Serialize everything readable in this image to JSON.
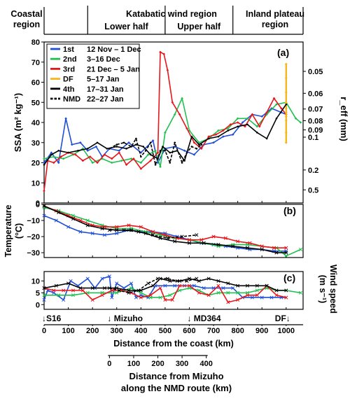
{
  "chart_data": {
    "type": "line",
    "x_axis": {
      "label": "Distance from the coast (km)",
      "range": [
        0,
        1070
      ],
      "ticks": [
        0,
        100,
        200,
        300,
        400,
        500,
        600,
        700,
        800,
        900,
        1000
      ]
    },
    "regions": {
      "coastal": "Coastal\nregion",
      "katabatic": "Katabatic wind region",
      "lower": "Lower half",
      "upper": "Upper half",
      "inland": "Inland plateau\nregion",
      "bounds_km": [
        0,
        180,
        500,
        780,
        1070
      ]
    },
    "sites": [
      {
        "label": "↓S16",
        "x": 0
      },
      {
        "label": "↓ Mizuho",
        "x": 270
      },
      {
        "label": "↓ MD364",
        "x": 600
      },
      {
        "label": "DF↓",
        "x": 1000
      }
    ],
    "colors": {
      "1st": "#1f4fd6",
      "2nd": "#20c050",
      "3rd": "#e8151b",
      "DF": "#f4b81c",
      "4th": "#000000",
      "NMD": "#000000"
    },
    "legend": [
      {
        "key": "1st",
        "name": "1st",
        "period": "12 Nov – 1 Dec",
        "style": "solid"
      },
      {
        "key": "2nd",
        "name": "2nd",
        "period": "3–16 Dec",
        "style": "solid"
      },
      {
        "key": "3rd",
        "name": "3rd",
        "period": "21 Dec – 5 Jan",
        "style": "solid"
      },
      {
        "key": "DF",
        "name": "DF",
        "period": "5–17 Jan",
        "style": "solid"
      },
      {
        "key": "4th",
        "name": "4th",
        "period": "17–31 Jan",
        "style": "solid"
      },
      {
        "key": "NMD",
        "name": "NMD",
        "period": "22–27 Jan",
        "style": "dashed"
      }
    ],
    "panels": [
      {
        "id": "a",
        "tag": "(a)",
        "ylabel": "SSA (m² kg⁻¹)",
        "ylim": [
          0,
          80
        ],
        "yticks": [
          0,
          10,
          20,
          30,
          40,
          50,
          60,
          70,
          80
        ],
        "right_label": "r_eff (mm)",
        "right_ticks": [
          {
            "label": "0.05",
            "ssa": 65.4
          },
          {
            "label": "0.06",
            "ssa": 54.5
          },
          {
            "label": "0.07",
            "ssa": 46.7
          },
          {
            "label": "0.08",
            "ssa": 40.9
          },
          {
            "label": "0.09",
            "ssa": 36.3
          },
          {
            "label": "0.1",
            "ssa": 32.7
          },
          {
            "label": "0.2",
            "ssa": 16.4
          },
          {
            "label": "0.5",
            "ssa": 6.5
          }
        ],
        "series": [
          {
            "key": "1st",
            "x": [
              0,
              30,
              60,
              90,
              115,
              150,
              180,
              215,
              240,
              270,
              310,
              350,
              400,
              450,
              470,
              500,
              540,
              580,
              620,
              660,
              700,
              740,
              780,
              820,
              860,
              900,
              940,
              980,
              1000
            ],
            "y": [
              20,
              25,
              20,
              42,
              29,
              30,
              26,
              28,
              23,
              27,
              26,
              30,
              25,
              31,
              20,
              27,
              28,
              26,
              24,
              29,
              30,
              33,
              34,
              40,
              44,
              43,
              47,
              45,
              44
            ]
          },
          {
            "key": "2nd",
            "x": [
              0,
              40,
              80,
              120,
              160,
              200,
              240,
              280,
              320,
              360,
              400,
              430,
              460,
              480,
              500,
              540,
              570,
              600,
              640,
              680,
              720,
              760,
              800,
              840,
              880,
              920,
              960,
              1000,
              1040,
              1060
            ],
            "y": [
              22,
              23,
              22,
              24,
              27,
              20,
              22,
              20,
              21,
              22,
              20,
              24,
              26,
              18,
              35,
              44,
              52,
              36,
              30,
              32,
              36,
              37,
              42,
              42,
              38,
              44,
              49,
              50,
              42,
              40
            ]
          },
          {
            "key": "3rd",
            "x": [
              0,
              15,
              40,
              70,
              100,
              130,
              160,
              190,
              220,
              250,
              280,
              310,
              340,
              370,
              400,
              440,
              470,
              480,
              495,
              510,
              530,
              560,
              590,
              620,
              650,
              680,
              710,
              740,
              770,
              800,
              830,
              860,
              890,
              920,
              950,
              980,
              1000
            ],
            "y": [
              6,
              21,
              20,
              23,
              25,
              24,
              21,
              23,
              20,
              24,
              22,
              25,
              19,
              22,
              17,
              21,
              25,
              75,
              74,
              66,
              50,
              44,
              37,
              30,
              27,
              33,
              34,
              36,
              39,
              40,
              38,
              44,
              38,
              45,
              52,
              47,
              44
            ]
          },
          {
            "key": "DF",
            "x": [
              1000,
              1000,
              1000,
              1000,
              1000,
              1000,
              1000,
              1000,
              1000,
              1000
            ],
            "y": [
              69,
              62,
              55,
              50,
              47,
              45,
              43,
              41,
              35,
              30
            ]
          },
          {
            "key": "4th",
            "x": [
              0,
              30,
              60,
              100,
              140,
              180,
              220,
              260,
              300,
              340,
              380,
              410,
              440,
              470,
              490,
              520,
              550,
              580,
              610,
              640,
              680,
              720,
              760,
              800,
              840,
              880,
              920,
              960,
              1000
            ],
            "y": [
              19,
              24,
              26,
              25,
              26,
              27,
              30,
              27,
              28,
              27,
              29,
              28,
              24,
              22,
              28,
              25,
              26,
              21,
              33,
              29,
              32,
              33,
              36,
              38,
              39,
              35,
              32,
              42,
              49
            ]
          },
          {
            "key": "NMD",
            "x": [
              270,
              300,
              330,
              360,
              380,
              400,
              420,
              440,
              460,
              480,
              500,
              520,
              540,
              570,
              590,
              610,
              630,
              650
            ],
            "y": [
              27,
              29,
              30,
              28,
              32,
              23,
              26,
              30,
              19,
              26,
              26,
              20,
              30,
              20,
              25,
              28,
              27,
              29
            ]
          }
        ]
      },
      {
        "id": "b",
        "tag": "(b)",
        "ylabel": "Temperature (°C)",
        "ylim": [
          -33,
          0
        ],
        "yticks": [
          0,
          -10,
          -20,
          -30
        ],
        "series": [
          {
            "key": "1st",
            "x": [
              0,
              50,
              100,
              150,
              200,
              250,
              300,
              350,
              400,
              450,
              500,
              550,
              600,
              650,
              700,
              750,
              800,
              850,
              900,
              950,
              1000
            ],
            "y": [
              -7,
              -10,
              -14,
              -17,
              -18,
              -19,
              -18,
              -16,
              -17,
              -17,
              -18,
              -20,
              -22,
              -24,
              -25,
              -26,
              -27,
              -28,
              -28,
              -29,
              -29
            ]
          },
          {
            "key": "2nd",
            "x": [
              0,
              60,
              120,
              180,
              240,
              300,
              360,
              420,
              480,
              540,
              600,
              660,
              720,
              780,
              840,
              900,
              960,
              1000,
              1060
            ],
            "y": [
              -2,
              -4,
              -7,
              -10,
              -13,
              -15,
              -15,
              -17,
              -19,
              -21,
              -22,
              -24,
              -26,
              -25,
              -25,
              -26,
              -27,
              -32,
              -28
            ]
          },
          {
            "key": "3rd",
            "x": [
              0,
              50,
              100,
              150,
              200,
              250,
              300,
              350,
              400,
              450,
              500,
              550,
              600,
              650,
              700,
              750,
              800,
              850,
              900,
              950,
              1000
            ],
            "y": [
              -1,
              -4,
              -7,
              -10,
              -13,
              -14,
              -14,
              -13,
              -14,
              -17,
              -19,
              -21,
              -22,
              -22,
              -20,
              -21,
              -23,
              -24,
              -26,
              -27,
              -27
            ]
          },
          {
            "key": "4th",
            "x": [
              0,
              60,
              120,
              180,
              240,
              300,
              360,
              420,
              480,
              540,
              600,
              660,
              720,
              780,
              840,
              900,
              960,
              1000
            ],
            "y": [
              -1,
              -5,
              -9,
              -13,
              -15,
              -16,
              -16,
              -18,
              -21,
              -23,
              -24,
              -24,
              -25,
              -26,
              -27,
              -28,
              -30,
              -30
            ]
          },
          {
            "key": "NMD",
            "x": [
              270,
              330,
              390,
              450,
              510,
              570,
              630
            ],
            "y": [
              -16,
              -16,
              -17,
              -19,
              -21,
              -20,
              -19
            ]
          }
        ]
      },
      {
        "id": "c",
        "tag": "(c)",
        "ylabel": "Wind speed (m s⁻¹)",
        "ylim": [
          -2,
          14
        ],
        "yticks": [
          0,
          5,
          10
        ],
        "series": [
          {
            "key": "1st",
            "x": [
              0,
              15,
              40,
              80,
              110,
              140,
              180,
              210,
              240,
              270,
              280,
              300,
              330,
              360,
              380,
              400,
              430,
              460,
              500,
              540,
              580,
              620,
              660,
              700,
              740,
              780,
              820,
              860,
              900,
              940,
              980,
              1000
            ],
            "y": [
              2,
              6,
              5,
              2,
              10,
              8,
              11,
              7,
              11,
              12,
              3,
              9,
              7,
              9,
              3,
              4,
              3,
              8,
              8,
              8,
              8,
              8,
              7,
              7,
              7,
              7,
              3,
              3,
              3,
              3,
              3,
              3
            ]
          },
          {
            "key": "2nd",
            "x": [
              0,
              60,
              120,
              180,
              240,
              300,
              360,
              400,
              440,
              480,
              520,
              560,
              600,
              640,
              680,
              720,
              760,
              800,
              840,
              880,
              920,
              960,
              1000,
              1060
            ],
            "y": [
              4,
              4,
              4,
              5,
              5,
              5,
              7,
              5,
              3,
              3,
              4,
              6,
              7,
              6,
              4,
              5,
              5,
              5,
              5,
              6,
              7,
              6,
              6,
              5
            ]
          },
          {
            "key": "3rd",
            "x": [
              0,
              40,
              80,
              120,
              160,
              200,
              240,
              280,
              320,
              360,
              400,
              440,
              480,
              500,
              530,
              560,
              600,
              640,
              680,
              720,
              760,
              800,
              840,
              880,
              920,
              960,
              1000
            ],
            "y": [
              7,
              6,
              6,
              6,
              6,
              2,
              4,
              6,
              6,
              5,
              3,
              4,
              7,
              2,
              2,
              8,
              8,
              5,
              4,
              8,
              1,
              2,
              4,
              4,
              8,
              4,
              3
            ]
          },
          {
            "key": "4th",
            "x": [
              0,
              50,
              100,
              150,
              200,
              250,
              300,
              350,
              400,
              450,
              480,
              520,
              560,
              600,
              640,
              680,
              720,
              760,
              800,
              840,
              880,
              920,
              960,
              1000
            ],
            "y": [
              7,
              8,
              9,
              7,
              7,
              7,
              7,
              6,
              6,
              8,
              11,
              10,
              10,
              11,
              10,
              11,
              10,
              9,
              8,
              8,
              8,
              8,
              6,
              6
            ]
          },
          {
            "key": "NMD",
            "x": [
              270,
              310,
              350,
              390,
              430,
              470,
              510,
              550,
              590,
              630
            ],
            "y": [
              7,
              6,
              5,
              6,
              9,
              11,
              11,
              10,
              10,
              11
            ]
          }
        ]
      }
    ],
    "mizuho_axis": {
      "label": "Distance from Mizuho\nalong the NMD route (km)",
      "offset_km": 270,
      "ticks": [
        0,
        100,
        200,
        300,
        400
      ]
    }
  }
}
